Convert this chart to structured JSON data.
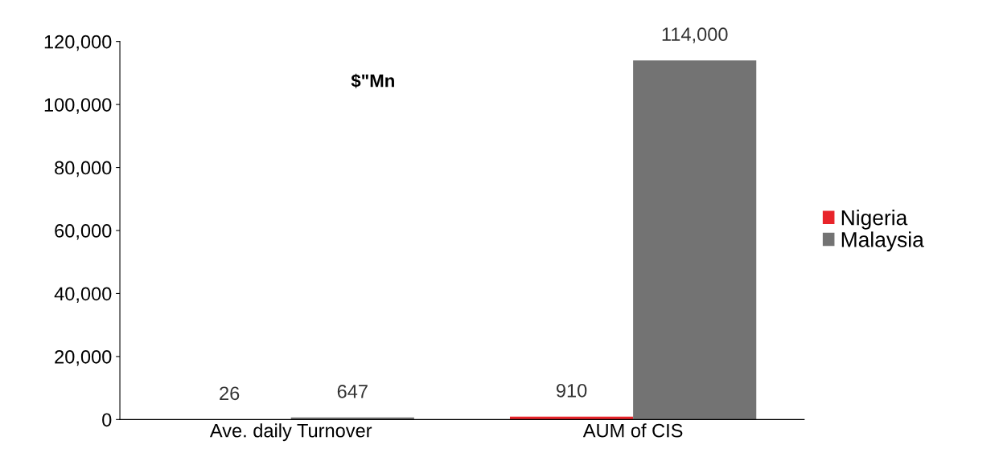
{
  "chart_data": {
    "type": "bar",
    "categories": [
      "Ave. daily Turnover",
      "AUM of CIS"
    ],
    "series": [
      {
        "name": "Nigeria",
        "color": "#e8242a",
        "values": [
          26,
          910
        ],
        "value_labels": [
          "26",
          "910"
        ]
      },
      {
        "name": "Malaysia",
        "color": "#737373",
        "values": [
          647,
          114000
        ],
        "value_labels": [
          "647",
          "114,000"
        ]
      }
    ],
    "ylim": [
      0,
      120000
    ],
    "yticks": [
      0,
      {
        "value": 20000,
        "label": "20,000"
      },
      {
        "value": 40000,
        "label": "40,000"
      },
      {
        "value": 60000,
        "label": "60,000"
      },
      {
        "value": 80000,
        "label": "80,000"
      },
      {
        "value": 100000,
        "label": "100,000"
      },
      {
        "value": 120000,
        "label": "120,000"
      }
    ],
    "annotations": [
      "$\"Mn"
    ],
    "grid": false,
    "legend": "right"
  }
}
